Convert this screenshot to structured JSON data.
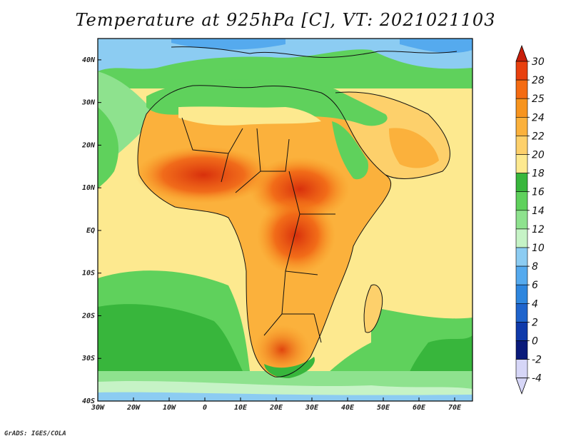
{
  "title": "Temperature at 925hPa [C], VT: 2021021103",
  "credit": "GrADS: IGES/COLA",
  "map": {
    "lon_ticks": [
      "30W",
      "20W",
      "10W",
      "0",
      "10E",
      "20E",
      "30E",
      "40E",
      "50E",
      "60E",
      "70E"
    ],
    "lat_ticks": [
      "40N",
      "30N",
      "20N",
      "10N",
      "EQ",
      "10S",
      "20S",
      "30S",
      "40S"
    ],
    "lon_range": [
      -30,
      75
    ],
    "lat_range": [
      -40,
      45
    ]
  },
  "colorbar": {
    "labels": [
      "30",
      "28",
      "25",
      "24",
      "22",
      "20",
      "18",
      "16",
      "14",
      "12",
      "10",
      "8",
      "6",
      "4",
      "2",
      "0",
      "-2",
      "-4"
    ],
    "colors": [
      "#c81e0a",
      "#e8400e",
      "#f46b12",
      "#f7941e",
      "#fbb13c",
      "#fdd06b",
      "#fde98f",
      "#38b63c",
      "#5fd15c",
      "#8ee28e",
      "#c6f3c6",
      "#8cccf2",
      "#55aaee",
      "#2e86de",
      "#1f64cc",
      "#0f3aaa",
      "#0a1a7a",
      "#d6d6f7"
    ]
  }
}
